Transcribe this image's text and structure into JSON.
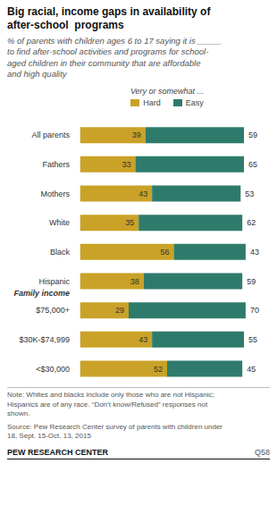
{
  "chart_data": {
    "type": "bar",
    "orientation": "horizontal",
    "stacked": true,
    "title": "Big racial, income gaps in availability of\nafter-school  programs",
    "subtitle": "% of parents with children ages 6 to 17 saying it is _____\nto find after-school activities and programs for school-\naged children in their community that are affordable\nand high quality",
    "legend_title": "Very or somewhat ...",
    "legend": "top",
    "categories": [
      "All parents",
      "Fathers",
      "Mothers",
      "White",
      "Black",
      "Hispanic",
      "$75,000+",
      "$30K-$74,999",
      "<$30,000"
    ],
    "series": [
      {
        "name": "Hard",
        "color": "#C9A227",
        "values": [
          39,
          33,
          43,
          35,
          56,
          38,
          29,
          43,
          52
        ]
      },
      {
        "name": "Easy",
        "color": "#2E7B6C",
        "values": [
          59,
          65,
          53,
          62,
          43,
          59,
          70,
          55,
          45
        ]
      }
    ],
    "xlim": [
      -2,
      106
    ],
    "tick_labels": "y",
    "grid": false,
    "data_labels": true,
    "annotations": [
      {
        "text": "Family income",
        "category": "$75,000+"
      }
    ],
    "note": "Note: Whites and blacks include only those who are not Hispanic;\nHispanics are of any race. “Don’t know/Refused” responses not\nshown.",
    "source": "Source: Pew Research Center survey of parents with children under\n18, Sept. 15-Oct. 13, 2015",
    "org": "PEW RESEARCH CENTER",
    "question": "Q58"
  }
}
